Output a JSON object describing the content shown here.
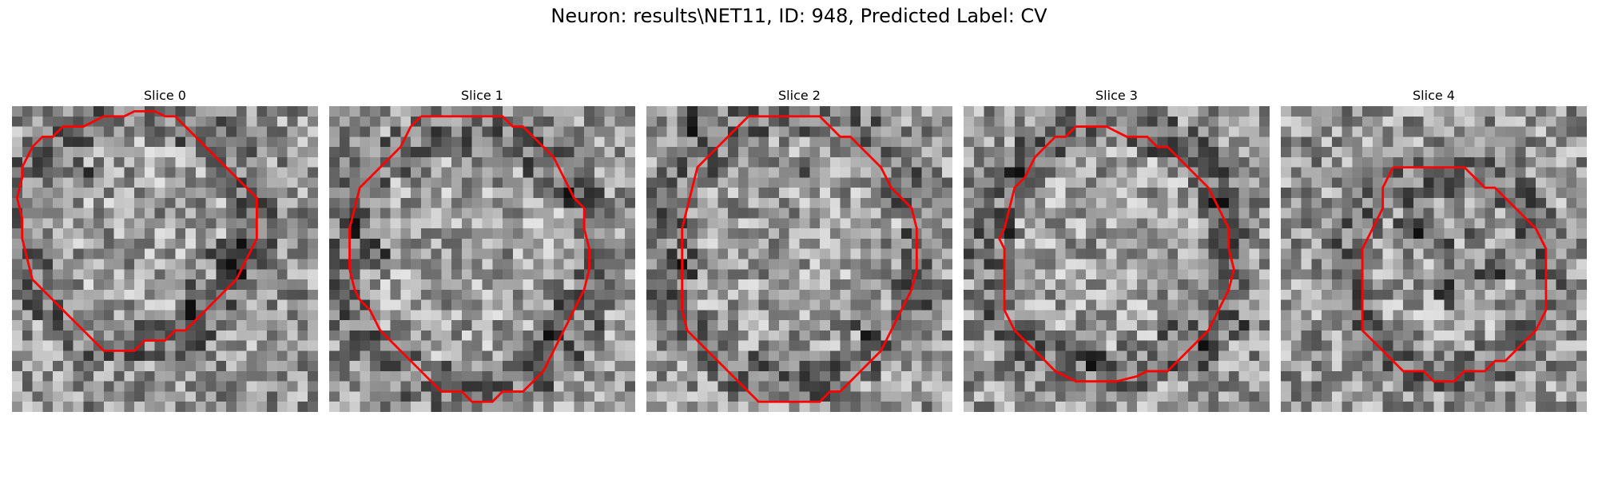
{
  "figure": {
    "title": "Neuron: results\\NET11, ID: 948, Predicted Label: CV"
  },
  "slices": [
    {
      "title": "Slice 0",
      "contour": [
        [
          15,
          1
        ],
        [
          14,
          0.5
        ],
        [
          12,
          0.5
        ],
        [
          11,
          1
        ],
        [
          9,
          1
        ],
        [
          8,
          1.5
        ],
        [
          7,
          2
        ],
        [
          5,
          2
        ],
        [
          4,
          3
        ],
        [
          3,
          3
        ],
        [
          2,
          4
        ],
        [
          1,
          6
        ],
        [
          1,
          7
        ],
        [
          0.5,
          9
        ],
        [
          1,
          11
        ],
        [
          1,
          13
        ],
        [
          1.5,
          15
        ],
        [
          2,
          17
        ],
        [
          3,
          18
        ],
        [
          4,
          19
        ],
        [
          5,
          20
        ],
        [
          6,
          21
        ],
        [
          7,
          22
        ],
        [
          8,
          23
        ],
        [
          9,
          24
        ],
        [
          11,
          24
        ],
        [
          12,
          24
        ],
        [
          13,
          23
        ],
        [
          14,
          23
        ],
        [
          15,
          23
        ],
        [
          16,
          22
        ],
        [
          17,
          22
        ],
        [
          18,
          21
        ],
        [
          19,
          20
        ],
        [
          20,
          19
        ],
        [
          21,
          18
        ],
        [
          22,
          17
        ],
        [
          23,
          15
        ],
        [
          24,
          13
        ],
        [
          24,
          11
        ],
        [
          24,
          9
        ],
        [
          23,
          8
        ],
        [
          22,
          7
        ],
        [
          21,
          6
        ],
        [
          20,
          5
        ],
        [
          19,
          4
        ],
        [
          18,
          3
        ],
        [
          17,
          2
        ],
        [
          16,
          1
        ],
        [
          15,
          1
        ]
      ],
      "dark_spots": [
        [
          6,
          6
        ],
        [
          18,
          17
        ],
        [
          20,
          14
        ],
        [
          17,
          20
        ],
        [
          22,
          13
        ],
        [
          21,
          16
        ]
      ]
    },
    {
      "title": "Slice 1",
      "contour": [
        [
          9,
          1
        ],
        [
          17,
          1
        ],
        [
          18,
          2
        ],
        [
          19,
          2
        ],
        [
          20,
          3
        ],
        [
          21,
          4
        ],
        [
          22,
          5
        ],
        [
          23,
          7
        ],
        [
          24,
          9
        ],
        [
          25,
          10
        ],
        [
          25,
          12
        ],
        [
          25.5,
          14
        ],
        [
          25.5,
          16
        ],
        [
          25,
          18
        ],
        [
          24,
          20
        ],
        [
          23,
          22
        ],
        [
          22,
          24
        ],
        [
          21,
          26
        ],
        [
          20,
          27
        ],
        [
          19,
          28
        ],
        [
          17,
          28
        ],
        [
          16,
          29
        ],
        [
          14,
          29
        ],
        [
          13,
          28
        ],
        [
          11,
          28
        ],
        [
          10,
          27
        ],
        [
          9,
          26
        ],
        [
          8,
          25
        ],
        [
          7,
          24
        ],
        [
          6,
          23
        ],
        [
          5,
          22
        ],
        [
          4,
          20
        ],
        [
          3,
          19
        ],
        [
          2.5,
          18
        ],
        [
          2,
          16
        ],
        [
          2,
          14
        ],
        [
          2,
          12
        ],
        [
          2.5,
          10
        ],
        [
          3,
          8
        ],
        [
          4,
          7
        ],
        [
          5,
          6
        ],
        [
          6,
          5
        ],
        [
          7,
          4
        ],
        [
          8,
          2
        ],
        [
          9,
          1
        ]
      ],
      "dark_spots": [
        [
          2,
          10
        ],
        [
          3,
          12
        ],
        [
          22,
          20
        ],
        [
          23,
          8
        ],
        [
          4,
          14
        ],
        [
          21,
          22
        ]
      ]
    },
    {
      "title": "Slice 2",
      "contour": [
        [
          10,
          1
        ],
        [
          11,
          1
        ],
        [
          12,
          1
        ],
        [
          13,
          1
        ],
        [
          14,
          1
        ],
        [
          15,
          1
        ],
        [
          16,
          1
        ],
        [
          17,
          1
        ],
        [
          18,
          2
        ],
        [
          19,
          3
        ],
        [
          20,
          3
        ],
        [
          21,
          4
        ],
        [
          22,
          5
        ],
        [
          23,
          6
        ],
        [
          24,
          8
        ],
        [
          25,
          9
        ],
        [
          26,
          10
        ],
        [
          26.5,
          12
        ],
        [
          26.5,
          14
        ],
        [
          26.5,
          16
        ],
        [
          26,
          18
        ],
        [
          25,
          20
        ],
        [
          24,
          22
        ],
        [
          23,
          24
        ],
        [
          22,
          25
        ],
        [
          21,
          26
        ],
        [
          20,
          27
        ],
        [
          19,
          28
        ],
        [
          18,
          28
        ],
        [
          17,
          29
        ],
        [
          15,
          29
        ],
        [
          13,
          29
        ],
        [
          12,
          29
        ],
        [
          11,
          29
        ],
        [
          10,
          28
        ],
        [
          9,
          27
        ],
        [
          8,
          26
        ],
        [
          7,
          25
        ],
        [
          6,
          24
        ],
        [
          5,
          23
        ],
        [
          4,
          22
        ],
        [
          3.5,
          20
        ],
        [
          3.5,
          18
        ],
        [
          3.5,
          16
        ],
        [
          3.5,
          14
        ],
        [
          3.5,
          12
        ],
        [
          4,
          10
        ],
        [
          4.5,
          8
        ],
        [
          5,
          6
        ],
        [
          6,
          5
        ],
        [
          7,
          4
        ],
        [
          8,
          3
        ],
        [
          9,
          2
        ],
        [
          10,
          1
        ]
      ],
      "dark_spots": [
        [
          4,
          1
        ],
        [
          4,
          15
        ],
        [
          20,
          19
        ],
        [
          26,
          18
        ],
        [
          15,
          5
        ],
        [
          21,
          21
        ]
      ]
    },
    {
      "title": "Slice 3",
      "contour": [
        [
          11,
          2
        ],
        [
          13,
          2
        ],
        [
          14,
          2
        ],
        [
          15,
          2.5
        ],
        [
          16,
          3
        ],
        [
          17,
          3
        ],
        [
          18,
          3
        ],
        [
          19,
          4
        ],
        [
          20,
          4
        ],
        [
          21,
          5
        ],
        [
          22,
          6
        ],
        [
          23,
          7
        ],
        [
          24,
          8
        ],
        [
          25,
          10
        ],
        [
          26,
          12
        ],
        [
          26,
          14
        ],
        [
          26.5,
          16
        ],
        [
          26,
          18
        ],
        [
          25,
          20
        ],
        [
          24,
          22
        ],
        [
          23,
          23
        ],
        [
          22,
          24
        ],
        [
          21,
          25
        ],
        [
          20,
          26
        ],
        [
          18,
          26
        ],
        [
          17,
          26.5
        ],
        [
          15,
          27
        ],
        [
          13,
          27
        ],
        [
          11,
          27
        ],
        [
          10,
          26.5
        ],
        [
          9,
          26
        ],
        [
          8,
          25
        ],
        [
          7,
          24
        ],
        [
          6,
          23
        ],
        [
          5,
          22
        ],
        [
          4,
          20
        ],
        [
          4,
          18
        ],
        [
          4,
          16
        ],
        [
          4,
          14
        ],
        [
          3.5,
          13
        ],
        [
          4,
          12
        ],
        [
          4.5,
          10
        ],
        [
          5,
          8
        ],
        [
          6,
          7
        ],
        [
          7,
          5
        ],
        [
          8,
          4
        ],
        [
          9,
          3
        ],
        [
          10,
          3
        ],
        [
          11,
          2
        ]
      ],
      "dark_spots": [
        [
          4,
          12
        ],
        [
          24,
          9
        ],
        [
          5,
          6
        ],
        [
          23,
          24
        ],
        [
          12,
          24
        ],
        [
          26,
          21
        ]
      ]
    },
    {
      "title": "Slice 4",
      "contour": [
        [
          11,
          6
        ],
        [
          12,
          6
        ],
        [
          13,
          6
        ],
        [
          14,
          6
        ],
        [
          15,
          6
        ],
        [
          16,
          6
        ],
        [
          17,
          6
        ],
        [
          18,
          6
        ],
        [
          19,
          7
        ],
        [
          20,
          8
        ],
        [
          21,
          8
        ],
        [
          22,
          9
        ],
        [
          23,
          10
        ],
        [
          24,
          11
        ],
        [
          25,
          12
        ],
        [
          26,
          14
        ],
        [
          26,
          16
        ],
        [
          26,
          18
        ],
        [
          26,
          20
        ],
        [
          25,
          22
        ],
        [
          24,
          23
        ],
        [
          23,
          24
        ],
        [
          22,
          25
        ],
        [
          21,
          25
        ],
        [
          20,
          26
        ],
        [
          19,
          26
        ],
        [
          18,
          26
        ],
        [
          17,
          27
        ],
        [
          16,
          27
        ],
        [
          15,
          27
        ],
        [
          14,
          26
        ],
        [
          13,
          26
        ],
        [
          12,
          26
        ],
        [
          11,
          25
        ],
        [
          10,
          24
        ],
        [
          9,
          23
        ],
        [
          8,
          22
        ],
        [
          8,
          20
        ],
        [
          8,
          18
        ],
        [
          8,
          16
        ],
        [
          8,
          14
        ],
        [
          8.5,
          13
        ],
        [
          9,
          12
        ],
        [
          10,
          10
        ],
        [
          10,
          8
        ],
        [
          11,
          6
        ]
      ],
      "dark_spots": [
        [
          12,
          12
        ],
        [
          12,
          11
        ],
        [
          14,
          12
        ],
        [
          16,
          14
        ],
        [
          18,
          12
        ],
        [
          20,
          16
        ],
        [
          22,
          14
        ],
        [
          16,
          18
        ]
      ]
    }
  ]
}
